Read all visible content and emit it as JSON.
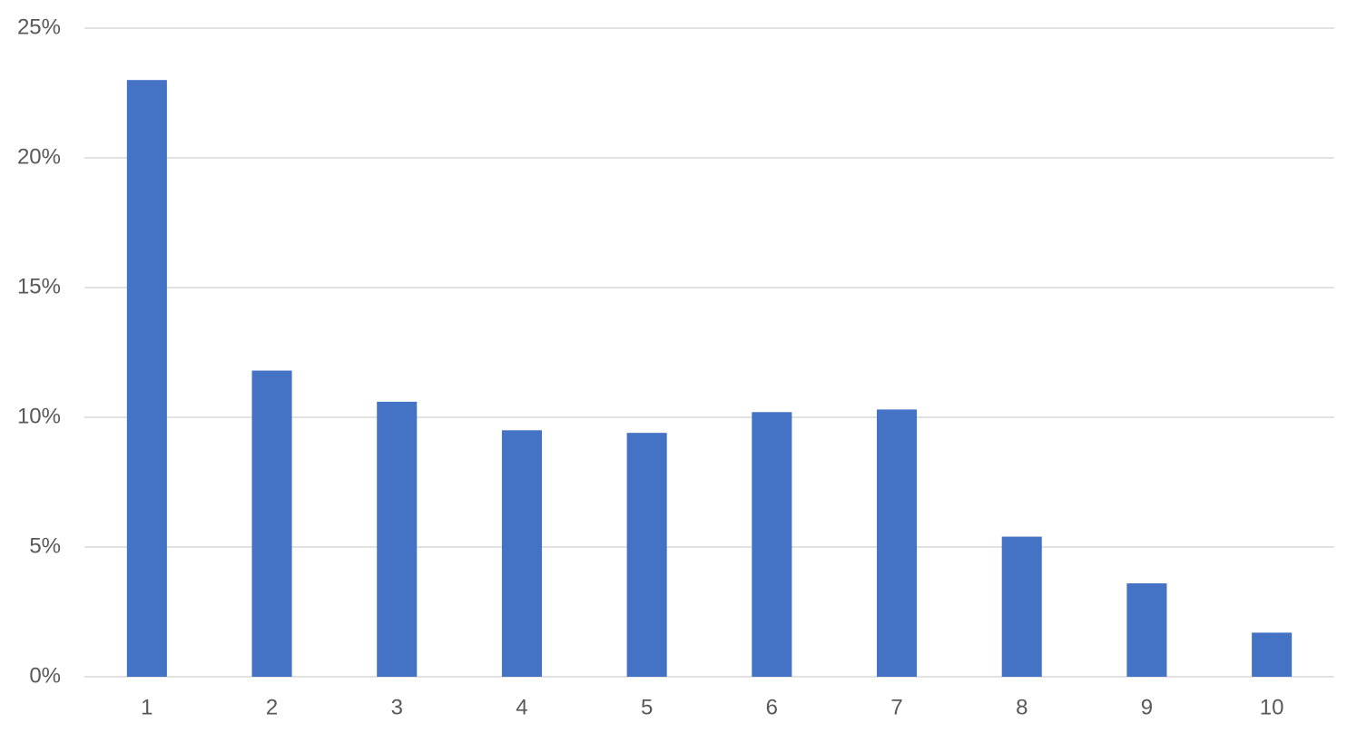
{
  "chart_data": {
    "type": "bar",
    "categories": [
      "1",
      "2",
      "3",
      "4",
      "5",
      "6",
      "7",
      "8",
      "9",
      "10"
    ],
    "values": [
      23.0,
      11.8,
      10.6,
      9.5,
      9.4,
      10.2,
      10.3,
      5.4,
      3.6,
      1.7
    ],
    "color": "#4472c4",
    "ylim": [
      0,
      25
    ],
    "yticks": [
      {
        "value": 0,
        "label": "0%"
      },
      {
        "value": 5,
        "label": "5%"
      },
      {
        "value": 10,
        "label": "10%"
      },
      {
        "value": 15,
        "label": "15%"
      },
      {
        "value": 20,
        "label": "20%"
      },
      {
        "value": 25,
        "label": "25%"
      }
    ],
    "grid": true
  }
}
